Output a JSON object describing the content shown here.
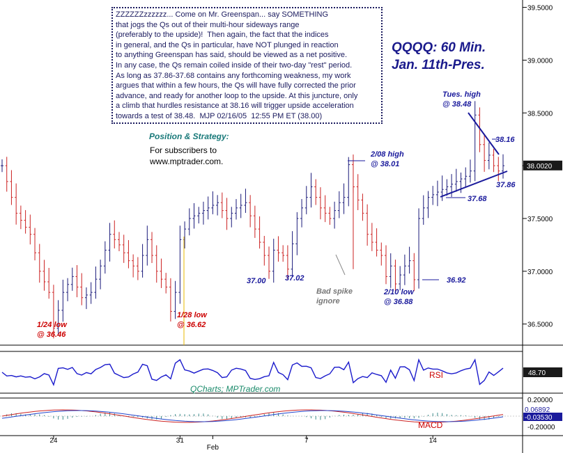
{
  "commentary": {
    "lines": [
      "ZZZZZZzzzzzz... Come on Mr. Greenspan... say SOMETHING",
      "that jogs the Qs out of their multi-hour sideways range",
      "(preferably to the upside)!  Then again, the fact that the indices",
      "in general, and the Qs in particular, have NOT plunged in reaction",
      "to anything Greenspan has said, should be viewed as a net positive.",
      "In any case, the Qs remain coiled inside of their two-day \"rest\" period.",
      "As long as 37.86-37.68 contains any forthcoming weakness, my work",
      "argues that within a few hours, the Qs will have fully corrected the prior",
      "advance, and ready for another loop to the upside. At this juncture, only",
      "a climb that hurdles resistance at 38.16 will trigger upside acceleration",
      "towards a test of 38.48.  MJP 02/16/05  12:55 PM ET (38.00)"
    ]
  },
  "strategy": {
    "title": "Position & Strategy:",
    "lines": [
      "For subscribers to",
      "www.mptrader.com."
    ]
  },
  "chart_title": {
    "line1": "QQQQ: 60 Min.",
    "line2": "Jan. 11th-Pres."
  },
  "source_label": "QCharts; MPTrader.com",
  "annotations": {
    "low_124": "1/24 low\n@ 36.46",
    "low_128": "1/28 low\n@ 36.62",
    "v3700": "37.00",
    "v3702": "37.02",
    "bad_spike": "Bad spike\nignore",
    "high_208": "2/08 high\n@ 38.01",
    "low_210": "2/10 low\n@ 36.88",
    "v3692": "36.92",
    "tues_high": "Tues. high\n@ 38.48",
    "v3816": "38.16",
    "v3786": "37.86",
    "v3768": "37.68"
  },
  "chart_data": {
    "type": "bar",
    "series_type": "ohlc",
    "price_axis": {
      "ticks": [
        "39.5000",
        "39.0000",
        "38.5000",
        "38.0000",
        "37.5000",
        "37.0000",
        "36.5000"
      ],
      "current": "38.0020",
      "range": [
        36.3,
        39.55
      ]
    },
    "date_labels": [
      {
        "label": "24",
        "bar": 11
      },
      {
        "label": "31",
        "bar": 38
      },
      {
        "label": "Feb",
        "bar": 45
      },
      {
        "label": "7",
        "bar": 65
      },
      {
        "label": "14",
        "bar": 92
      }
    ],
    "price_path": [
      [
        0,
        38.0
      ],
      [
        3,
        37.55
      ],
      [
        6,
        37.35
      ],
      [
        8,
        37.0
      ],
      [
        10,
        36.8
      ],
      [
        11,
        36.46
      ],
      [
        13,
        36.8
      ],
      [
        15,
        36.95
      ],
      [
        17,
        36.75
      ],
      [
        19,
        36.8
      ],
      [
        21,
        37.05
      ],
      [
        23,
        37.35
      ],
      [
        25,
        37.25
      ],
      [
        27,
        37.1
      ],
      [
        29,
        37.0
      ],
      [
        31,
        37.3
      ],
      [
        33,
        37.0
      ],
      [
        35,
        36.85
      ],
      [
        36,
        36.62
      ],
      [
        37,
        36.8
      ],
      [
        38,
        37.3
      ],
      [
        40,
        37.5
      ],
      [
        42,
        37.55
      ],
      [
        44,
        37.6
      ],
      [
        46,
        37.65
      ],
      [
        48,
        37.5
      ],
      [
        50,
        37.6
      ],
      [
        52,
        37.65
      ],
      [
        54,
        37.4
      ],
      [
        56,
        37.15
      ],
      [
        57,
        37.0
      ],
      [
        58,
        37.2
      ],
      [
        60,
        37.15
      ],
      [
        61,
        37.02
      ],
      [
        63,
        37.5
      ],
      [
        65,
        37.7
      ],
      [
        66,
        37.8
      ],
      [
        68,
        37.6
      ],
      [
        70,
        37.5
      ],
      [
        72,
        37.65
      ],
      [
        73,
        37.7
      ],
      [
        74,
        38.01
      ],
      [
        75,
        37.8
      ],
      [
        77,
        37.55
      ],
      [
        78,
        37.35
      ],
      [
        80,
        37.2
      ],
      [
        81,
        37.15
      ],
      [
        82,
        36.95
      ],
      [
        83,
        37.05
      ],
      [
        84,
        36.88
      ],
      [
        86,
        37.05
      ],
      [
        87,
        37.1
      ],
      [
        88,
        36.92
      ],
      [
        89,
        37.5
      ],
      [
        91,
        37.7
      ],
      [
        93,
        37.75
      ],
      [
        95,
        37.8
      ],
      [
        97,
        37.85
      ],
      [
        99,
        37.9
      ],
      [
        100,
        37.95
      ],
      [
        101,
        38.48
      ],
      [
        102,
        38.2
      ],
      [
        103,
        38.05
      ],
      [
        104,
        38.1
      ],
      [
        105,
        38.0
      ],
      [
        106,
        37.95
      ],
      [
        107,
        38.0
      ]
    ],
    "rsi": {
      "label": "RSI",
      "value": "48.70"
    },
    "macd": {
      "label": "MACD",
      "ticks": [
        "0.20000",
        "-0.20000"
      ],
      "values": [
        "0.06892",
        "-0.03530"
      ]
    }
  },
  "colors": {
    "bar_up": "#1a1a7a",
    "bar_down": "#cc2222",
    "rsi_line": "#1a1acc",
    "macd_line": "#cc2222",
    "signal_line": "#2244cc",
    "annotation_blue": "#1a1a9c",
    "annotation_red": "#cc0000"
  }
}
